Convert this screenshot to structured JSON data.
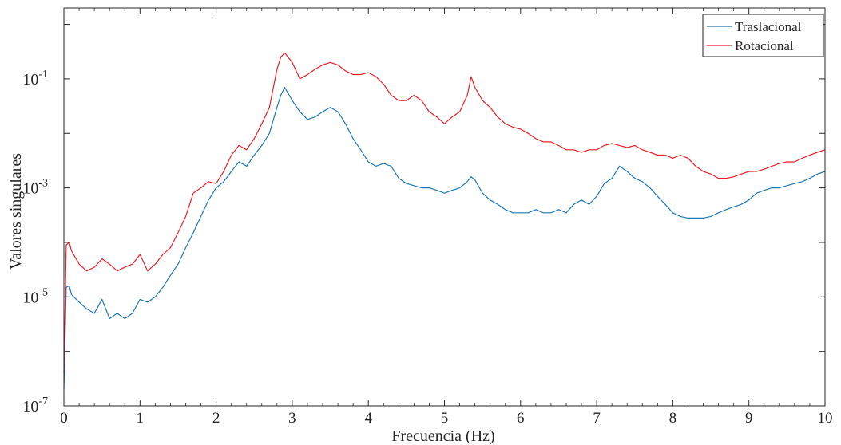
{
  "chart_data": {
    "type": "line",
    "title": "",
    "xlabel": "Frecuencia (Hz)",
    "ylabel": "Valores singulares",
    "xlim": [
      0,
      10
    ],
    "ylim": [
      1e-07,
      2
    ],
    "yscale": "log",
    "grid": false,
    "legend_position": "top-right",
    "x_ticks": [
      0,
      1,
      2,
      3,
      4,
      5,
      6,
      7,
      8,
      9,
      10
    ],
    "x_tick_labels": [
      "0",
      "1",
      "2",
      "3",
      "4",
      "5",
      "6",
      "7",
      "8",
      "9",
      "10"
    ],
    "y_ticks": [
      1e-07,
      1e-05,
      0.001,
      0.1
    ],
    "y_tick_labels": [
      {
        "base": "10",
        "exp": "-7"
      },
      {
        "base": "10",
        "exp": "-5"
      },
      {
        "base": "10",
        "exp": "-3"
      },
      {
        "base": "10",
        "exp": "-1"
      }
    ],
    "series": [
      {
        "name": "Traslacional",
        "color": "#1f77b4",
        "x": [
          0,
          0.03,
          0.07,
          0.1,
          0.2,
          0.3,
          0.4,
          0.5,
          0.6,
          0.7,
          0.8,
          0.9,
          1.0,
          1.1,
          1.2,
          1.3,
          1.4,
          1.5,
          1.6,
          1.7,
          1.8,
          1.9,
          2.0,
          2.1,
          2.2,
          2.3,
          2.4,
          2.5,
          2.6,
          2.7,
          2.8,
          2.85,
          2.9,
          3.0,
          3.1,
          3.2,
          3.3,
          3.4,
          3.5,
          3.6,
          3.7,
          3.8,
          3.9,
          4.0,
          4.1,
          4.2,
          4.3,
          4.4,
          4.5,
          4.6,
          4.7,
          4.8,
          4.9,
          5.0,
          5.1,
          5.2,
          5.3,
          5.35,
          5.4,
          5.5,
          5.6,
          5.7,
          5.8,
          5.9,
          6.0,
          6.1,
          6.2,
          6.3,
          6.4,
          6.5,
          6.6,
          6.7,
          6.8,
          6.9,
          7.0,
          7.1,
          7.2,
          7.3,
          7.4,
          7.5,
          7.6,
          7.7,
          7.8,
          7.9,
          8.0,
          8.1,
          8.2,
          8.3,
          8.4,
          8.5,
          8.6,
          8.7,
          8.8,
          8.9,
          9.0,
          9.1,
          9.2,
          9.3,
          9.4,
          9.5,
          9.6,
          9.7,
          9.8,
          9.9,
          10.0
        ],
        "y": [
          2e-07,
          1.5e-05,
          1.6e-05,
          1.1e-05,
          8e-06,
          6e-06,
          5e-06,
          9e-06,
          4e-06,
          5e-06,
          4e-06,
          5e-06,
          9e-06,
          8e-06,
          1e-05,
          1.5e-05,
          2.5e-05,
          4e-05,
          8e-05,
          0.00015,
          0.0003,
          0.0006,
          0.001,
          0.0013,
          0.002,
          0.003,
          0.0025,
          0.004,
          0.006,
          0.01,
          0.03,
          0.05,
          0.07,
          0.04,
          0.025,
          0.018,
          0.02,
          0.025,
          0.03,
          0.025,
          0.015,
          0.008,
          0.005,
          0.003,
          0.0025,
          0.0028,
          0.0025,
          0.0015,
          0.0012,
          0.0011,
          0.001,
          0.001,
          0.0009,
          0.0008,
          0.0009,
          0.001,
          0.0013,
          0.0016,
          0.0014,
          0.0008,
          0.0006,
          0.0005,
          0.0004,
          0.00035,
          0.00035,
          0.00035,
          0.0004,
          0.00035,
          0.00035,
          0.0004,
          0.00035,
          0.0005,
          0.0006,
          0.0005,
          0.0007,
          0.0012,
          0.0015,
          0.0025,
          0.002,
          0.0015,
          0.0013,
          0.001,
          0.0007,
          0.0005,
          0.00035,
          0.0003,
          0.00028,
          0.00028,
          0.00028,
          0.0003,
          0.00035,
          0.0004,
          0.00045,
          0.0005,
          0.0006,
          0.0008,
          0.0009,
          0.001,
          0.001,
          0.0011,
          0.0012,
          0.0013,
          0.0015,
          0.0018,
          0.002
        ]
      },
      {
        "name": "Rotacional",
        "color": "#e8202a",
        "x": [
          0,
          0.03,
          0.07,
          0.1,
          0.2,
          0.3,
          0.4,
          0.5,
          0.6,
          0.7,
          0.8,
          0.9,
          1.0,
          1.1,
          1.2,
          1.3,
          1.4,
          1.5,
          1.6,
          1.7,
          1.8,
          1.9,
          2.0,
          2.1,
          2.2,
          2.3,
          2.4,
          2.5,
          2.6,
          2.7,
          2.8,
          2.85,
          2.9,
          3.0,
          3.1,
          3.2,
          3.3,
          3.4,
          3.5,
          3.6,
          3.7,
          3.8,
          3.9,
          4.0,
          4.1,
          4.2,
          4.3,
          4.4,
          4.5,
          4.6,
          4.7,
          4.8,
          4.9,
          5.0,
          5.1,
          5.2,
          5.3,
          5.35,
          5.4,
          5.5,
          5.6,
          5.7,
          5.8,
          5.9,
          6.0,
          6.1,
          6.2,
          6.3,
          6.4,
          6.5,
          6.6,
          6.7,
          6.8,
          6.9,
          7.0,
          7.1,
          7.2,
          7.3,
          7.4,
          7.5,
          7.6,
          7.7,
          7.8,
          7.9,
          8.0,
          8.1,
          8.2,
          8.3,
          8.4,
          8.5,
          8.6,
          8.7,
          8.8,
          8.9,
          9.0,
          9.1,
          9.2,
          9.3,
          9.4,
          9.5,
          9.6,
          9.7,
          9.8,
          9.9,
          10.0
        ],
        "y": [
          4e-07,
          9e-05,
          0.0001,
          7e-05,
          4e-05,
          3e-05,
          3.5e-05,
          5e-05,
          4e-05,
          3e-05,
          3.5e-05,
          4e-05,
          6e-05,
          3e-05,
          4e-05,
          6e-05,
          8e-05,
          0.00015,
          0.0003,
          0.0008,
          0.001,
          0.0013,
          0.0012,
          0.002,
          0.004,
          0.006,
          0.005,
          0.008,
          0.015,
          0.03,
          0.15,
          0.25,
          0.3,
          0.2,
          0.1,
          0.12,
          0.15,
          0.18,
          0.2,
          0.18,
          0.14,
          0.12,
          0.12,
          0.13,
          0.11,
          0.08,
          0.05,
          0.04,
          0.04,
          0.05,
          0.04,
          0.025,
          0.02,
          0.015,
          0.02,
          0.025,
          0.05,
          0.11,
          0.07,
          0.04,
          0.03,
          0.02,
          0.015,
          0.013,
          0.012,
          0.01,
          0.008,
          0.007,
          0.007,
          0.006,
          0.005,
          0.005,
          0.0045,
          0.005,
          0.005,
          0.006,
          0.0065,
          0.006,
          0.0055,
          0.006,
          0.005,
          0.0045,
          0.004,
          0.004,
          0.0035,
          0.004,
          0.0035,
          0.0025,
          0.002,
          0.0018,
          0.0015,
          0.0015,
          0.0016,
          0.0018,
          0.002,
          0.002,
          0.0022,
          0.0025,
          0.0028,
          0.003,
          0.003,
          0.0035,
          0.004,
          0.0045,
          0.005
        ]
      }
    ]
  }
}
